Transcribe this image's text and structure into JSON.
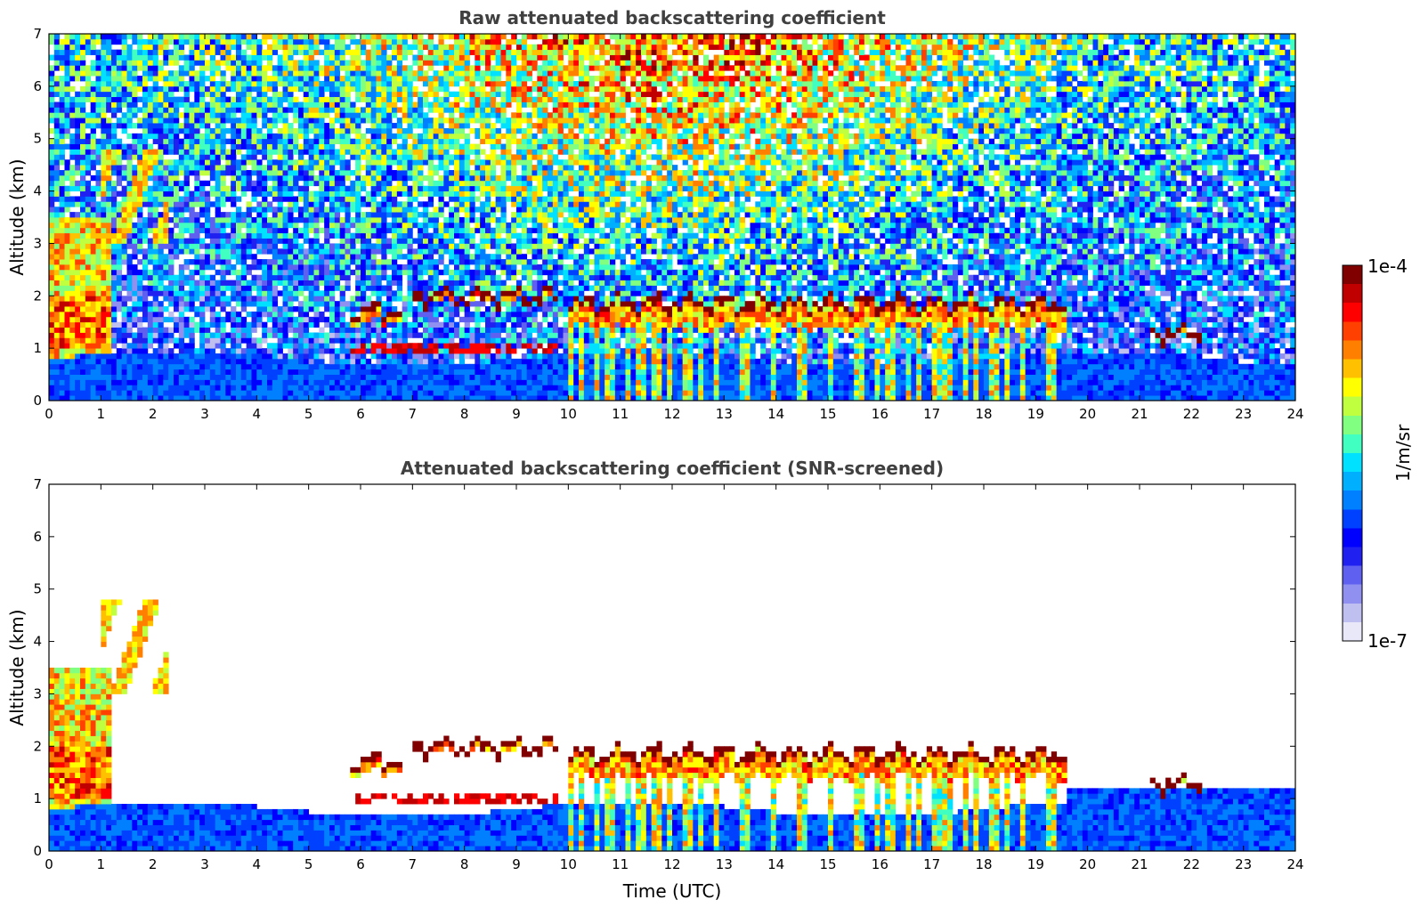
{
  "chart_data": [
    {
      "type": "heatmap",
      "title": "Raw attenuated backscattering coefficient",
      "xlabel": "",
      "ylabel": "Altitude (km)",
      "xlim": [
        0,
        24
      ],
      "ylim": [
        0,
        7
      ],
      "xticks": [
        0,
        1,
        2,
        3,
        4,
        5,
        6,
        7,
        8,
        9,
        10,
        11,
        12,
        13,
        14,
        15,
        16,
        17,
        18,
        19,
        20,
        21,
        22,
        23,
        24
      ],
      "yticks": [
        0,
        1,
        2,
        3,
        4,
        5,
        6,
        7
      ],
      "grid": false,
      "colorscale": "log",
      "zlim": [
        1e-07,
        0.0001
      ],
      "screened": false,
      "features": {
        "surface_layer_top_km": 0.8,
        "cloud_layers": [
          {
            "start_h": 5.8,
            "end_h": 6.8,
            "base_km": 1.5,
            "top_km": 1.75
          },
          {
            "start_h": 7.0,
            "end_h": 9.8,
            "base_km": 1.9,
            "top_km": 2.05
          },
          {
            "start_h": 10.0,
            "end_h": 19.6,
            "base_km": 1.4,
            "top_km": 1.9
          },
          {
            "start_h": 21.2,
            "end_h": 22.2,
            "base_km": 1.2,
            "top_km": 1.35
          }
        ]
      }
    },
    {
      "type": "heatmap",
      "title": "Attenuated backscattering coefficient (SNR-screened)",
      "xlabel": "Time (UTC)",
      "ylabel": "Altitude (km)",
      "xlim": [
        0,
        24
      ],
      "ylim": [
        0,
        7
      ],
      "xticks": [
        0,
        1,
        2,
        3,
        4,
        5,
        6,
        7,
        8,
        9,
        10,
        11,
        12,
        13,
        14,
        15,
        16,
        17,
        18,
        19,
        20,
        21,
        22,
        23,
        24
      ],
      "yticks": [
        0,
        1,
        2,
        3,
        4,
        5,
        6,
        7
      ],
      "grid": false,
      "colorscale": "log",
      "zlim": [
        1e-07,
        0.0001
      ],
      "screened": true
    }
  ],
  "colorbar": {
    "label": "1/m/sr",
    "max_label": "1e-4",
    "min_label": "1e-7",
    "colors": [
      "#e8e8f8",
      "#c0c0f0",
      "#9090f0",
      "#6060f0",
      "#2020f0",
      "#0000ff",
      "#0040ff",
      "#0080ff",
      "#00b0ff",
      "#00e0ff",
      "#40ffc0",
      "#80ff80",
      "#c0ff40",
      "#ffff00",
      "#ffc000",
      "#ff8000",
      "#ff4000",
      "#ff0000",
      "#c00000",
      "#800000"
    ]
  }
}
